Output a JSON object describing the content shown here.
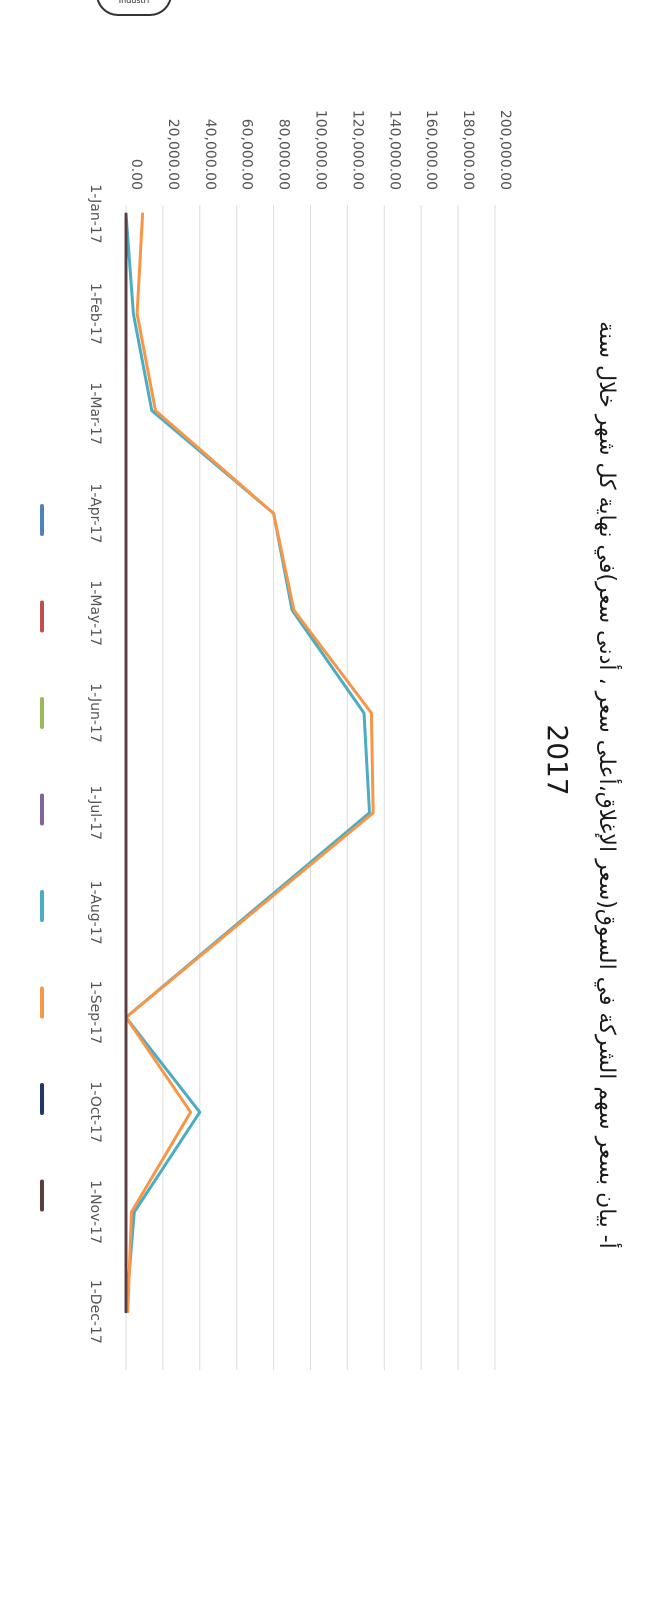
{
  "logo_text": "Industri",
  "chart_data": {
    "type": "line",
    "title": "أ- بيان بسعر سهم الشركة في السوق(سعر الإغلاق،أعلى سعر ، أدنى سعر)في نهاية كل شهر خلال سنة",
    "title_year": "2017",
    "orientation": "rotated-90-clockwise",
    "ylim": [
      0,
      200000
    ],
    "y_ticks": [
      "0.00",
      "20,000.00",
      "40,000.00",
      "60,000.00",
      "80,000.00",
      "100,000.00",
      "120,000.00",
      "140,000.00",
      "160,000.00",
      "180,000.00",
      "200,000.00"
    ],
    "categories": [
      "1-Jan-17",
      "1-Feb-17",
      "1-Mar-17",
      "1-Apr-17",
      "1-May-17",
      "1-Jun-17",
      "1-Jul-17",
      "1-Aug-17",
      "1-Sep-17",
      "1-Oct-17",
      "1-Nov-17",
      "1-Dec-17"
    ],
    "x_positions": [
      0,
      1,
      1.97,
      3,
      3.97,
      5,
      6,
      7,
      8.05,
      9,
      10,
      11
    ],
    "series": [
      {
        "color": "#4f81bd",
        "values": [
          0,
          0,
          0,
          0,
          0,
          0,
          0,
          0,
          0,
          0,
          0,
          0
        ]
      },
      {
        "color": "#c0504d",
        "values": [
          0,
          0,
          0,
          0,
          0,
          0,
          0,
          0,
          0,
          0,
          0,
          0
        ]
      },
      {
        "color": "#9bbb59",
        "values": [
          0,
          0,
          0,
          0,
          0,
          0,
          0,
          0,
          0,
          0,
          0,
          0
        ]
      },
      {
        "color": "#8064a2",
        "values": [
          0,
          0,
          0,
          0,
          0,
          0,
          0,
          0,
          0,
          0,
          0,
          0
        ]
      },
      {
        "color": "#4bacc6",
        "values": [
          0,
          4000,
          14000,
          80000,
          90000,
          129000,
          132000,
          null,
          0,
          40000,
          4500,
          0
        ]
      },
      {
        "color": "#f79646",
        "values": [
          9000,
          6000,
          16000,
          80000,
          91000,
          133000,
          134000,
          null,
          0,
          35000,
          3000,
          1000
        ]
      },
      {
        "color": "#1f3864",
        "values": [
          0,
          0,
          0,
          0,
          0,
          0,
          0,
          0,
          0,
          0,
          0,
          0
        ]
      },
      {
        "color": "#5b3d3d",
        "values": [
          0,
          0,
          0,
          0,
          0,
          0,
          0,
          0,
          0,
          0,
          0,
          0
        ]
      }
    ]
  }
}
